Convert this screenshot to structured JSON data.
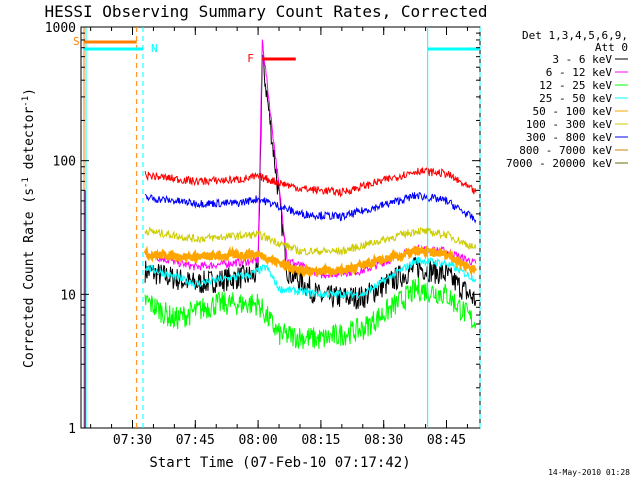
{
  "chart_data": {
    "type": "line",
    "title": "HESSI Observing Summary Count Rates, Corrected",
    "xlabel": "Start Time (07-Feb-10 07:17:42)",
    "ylabel_main": "Corrected Count Rate (s",
    "ylabel_sup1": "-1",
    "ylabel_mid": " detector",
    "ylabel_sup2": "-1",
    "ylabel_end": ")",
    "yscale": "log",
    "xlim": [
      "07:17:42",
      "08:53:00"
    ],
    "ylim": [
      1,
      1000
    ],
    "x_ticks": [
      "07:30",
      "07:45",
      "08:00",
      "08:15",
      "08:30",
      "08:45"
    ],
    "y_ticks": [
      "1",
      "10",
      "100",
      "1000"
    ],
    "legend_title": [
      "Det 1,3,4,5,6,9,",
      "Att 0"
    ],
    "legend_position": "right",
    "footer_date": "14-May-2010 01:28",
    "segments": {
      "S": {
        "label": "S",
        "start": "07:17:42",
        "end": "07:31:00",
        "color": "#ff8000"
      },
      "N": {
        "label": "N",
        "start": "07:17:42",
        "end": "07:32:30",
        "color": "#00ffff"
      },
      "N2": {
        "label": "",
        "start": "08:40:30",
        "end": "08:53:00",
        "color": "#00ffff"
      },
      "F": {
        "label": "F",
        "start": "08:01:00",
        "end": "08:09:00",
        "color": "#ff0000"
      }
    },
    "series": [
      {
        "name": "3 - 6 keV",
        "color": "#000000",
        "x": [
          "07:33",
          "07:45",
          "08:00",
          "08:01",
          "08:03",
          "08:07",
          "08:15",
          "08:25",
          "08:38",
          "08:45",
          "08:52"
        ],
        "y": [
          15,
          12,
          14,
          600,
          180,
          15,
          9.5,
          9.5,
          16,
          14,
          9
        ]
      },
      {
        "name": "6 - 12 keV",
        "color": "#ff00ff",
        "x": [
          "07:33",
          "07:45",
          "08:00",
          "08:01",
          "08:03",
          "08:07",
          "08:15",
          "08:25",
          "08:38",
          "08:45",
          "08:52"
        ],
        "y": [
          20,
          16,
          18,
          800,
          220,
          18,
          14,
          15,
          22,
          21,
          17
        ]
      },
      {
        "name": "12 - 25 keV",
        "color": "#00ff00",
        "x": [
          "07:33",
          "07:40",
          "07:50",
          "08:00",
          "08:05",
          "08:15",
          "08:25",
          "08:38",
          "08:45",
          "08:52"
        ],
        "y": [
          9,
          6.5,
          8.5,
          8.5,
          5,
          4.6,
          5.5,
          11,
          10,
          6
        ]
      },
      {
        "name": "25 - 50 keV",
        "color": "#00ffff",
        "x": [
          "07:33",
          "07:45",
          "07:58",
          "08:02",
          "08:05",
          "08:15",
          "08:25",
          "08:38",
          "08:45",
          "08:52"
        ],
        "y": [
          16,
          12,
          14,
          16,
          11,
          10,
          10,
          18,
          17,
          13
        ]
      },
      {
        "name": "50 - 100 keV",
        "color": "#ffa500",
        "x": [
          "07:33",
          "07:45",
          "08:00",
          "08:10",
          "08:20",
          "08:38",
          "08:45",
          "08:52"
        ],
        "y": [
          20,
          19,
          20,
          15,
          15,
          21,
          20,
          15
        ]
      },
      {
        "name": "100 - 300 keV",
        "color": "#cdcd00",
        "x": [
          "07:33",
          "07:45",
          "08:00",
          "08:10",
          "08:20",
          "08:38",
          "08:45",
          "08:52"
        ],
        "y": [
          30,
          26,
          28,
          21,
          21,
          30,
          28,
          22
        ]
      },
      {
        "name": "300 - 800 keV",
        "color": "#0000ff",
        "x": [
          "07:33",
          "07:45",
          "07:55",
          "08:00",
          "08:10",
          "08:20",
          "08:38",
          "08:45",
          "08:52"
        ],
        "y": [
          53,
          48,
          48,
          52,
          40,
          38,
          55,
          50,
          36
        ]
      },
      {
        "name": "800 - 7000 keV",
        "color": "#cc8400",
        "x": [],
        "y": []
      },
      {
        "name": "7000 - 20000 keV",
        "color": "#6b6b00",
        "x": [],
        "y": []
      },
      {
        "name": "",
        "color": "#ff0000",
        "x": [
          "07:33",
          "07:45",
          "07:55",
          "08:00",
          "08:10",
          "08:20",
          "08:38",
          "08:45",
          "08:52"
        ],
        "y": [
          78,
          70,
          72,
          76,
          62,
          58,
          84,
          80,
          58
        ]
      }
    ]
  }
}
